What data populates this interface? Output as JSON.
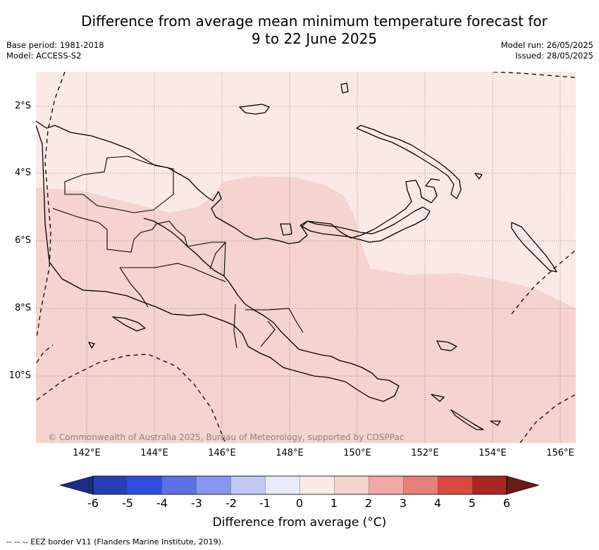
{
  "header": {
    "title_line1": "Difference from average mean minimum temperature forecast for",
    "title_line2": "9 to 22 June 2025",
    "base_period": "Base period: 1981-2018",
    "model": "Model: ACCESS-S2",
    "model_run": "Model run: 26/05/2025",
    "issued": "Issued: 28/05/2025"
  },
  "map": {
    "region": "Papua New Guinea",
    "lon_labels": [
      "142°E",
      "144°E",
      "146°E",
      "148°E",
      "150°E",
      "152°E",
      "154°E",
      "156°E"
    ],
    "lat_labels": [
      "2°S",
      "4°S",
      "6°S",
      "8°S",
      "10°S"
    ],
    "copyright": "© Commonwealth of Australia 2025, Bureau of Meteorology, supported by COSPPac",
    "anomaly_regions": [
      {
        "category": "0 to 1",
        "color": "#fbe9e7"
      },
      {
        "category": "1 to 2",
        "color": "#f5d3cf"
      }
    ]
  },
  "colorbar": {
    "title": "Difference from average (°C)",
    "ticks": [
      "-6",
      "-5",
      "-4",
      "-3",
      "-2",
      "-1",
      "0",
      "1",
      "2",
      "3",
      "4",
      "5",
      "6"
    ],
    "colors": [
      "#1c2c87",
      "#2540b7",
      "#2f4fe0",
      "#5d71e7",
      "#8796ee",
      "#c1c8f5",
      "#e7ebfa",
      "#fbe9e7",
      "#f5d3cf",
      "#eea9a4",
      "#e48077",
      "#d94a3d",
      "#a92720",
      "#6b1a16"
    ]
  },
  "footer": {
    "legend_note": "--  --  -- EEZ border V11 (Flanders Marine Institute, 2019)."
  }
}
